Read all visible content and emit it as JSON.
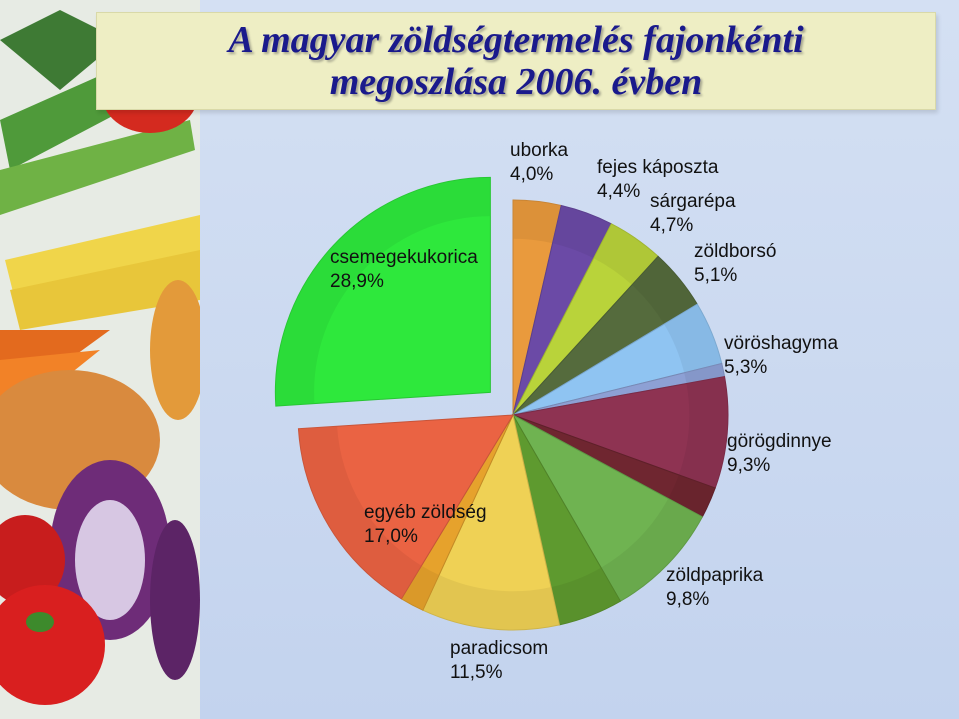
{
  "title": {
    "line1": "A magyar zöldségtermelés fajonkénti",
    "line2": "megoszlása 2006. évben"
  },
  "chart_data": {
    "type": "pie",
    "title": "A magyar zöldségtermelés fajonkénti megoszlása 2006. évben",
    "legend": "none",
    "unit": "%",
    "slices": [
      {
        "label": "uborka",
        "value": 4.0,
        "value_label": "4,0%",
        "color": "#e99a3d"
      },
      {
        "label": "fejes káposzta",
        "value": 4.4,
        "value_label": "4,4%",
        "color": "#6b4aa6"
      },
      {
        "label": "sárgarépa",
        "value": 4.7,
        "value_label": "4,7%",
        "color": "#b9d33a"
      },
      {
        "label": "zöldborsó",
        "value": 5.1,
        "value_label": "5,1%",
        "color": "#556b3d"
      },
      {
        "label": "vöröshagyma",
        "value": 5.3,
        "value_label": "5,3%",
        "color": "#8fc4f2"
      },
      {
        "label": "",
        "value": 1.1,
        "value_label": "",
        "color": "#8da0d4"
      },
      {
        "label": "görögdinnye",
        "value": 9.3,
        "value_label": "9,3%",
        "color": "#8e3352"
      },
      {
        "label": "",
        "value": 2.6,
        "value_label": "",
        "color": "#6f2630"
      },
      {
        "label": "zöldpaprika",
        "value": 9.8,
        "value_label": "9,8%",
        "color": "#6fb351"
      },
      {
        "label": "",
        "value": 5.4,
        "value_label": "",
        "color": "#5e9a2f"
      },
      {
        "label": "paradicsom",
        "value": 11.5,
        "value_label": "11,5%",
        "color": "#efd155"
      },
      {
        "label": "",
        "value": 2.0,
        "value_label": "",
        "color": "#e6a22c"
      },
      {
        "label": "egyéb zöldség",
        "value": 17.0,
        "value_label": "17,0%",
        "color": "#ea6343"
      },
      {
        "label": "csemegekukorica",
        "value": 28.9,
        "value_label": "28,9%",
        "color": "#2ee83c",
        "exploded": true
      }
    ]
  }
}
